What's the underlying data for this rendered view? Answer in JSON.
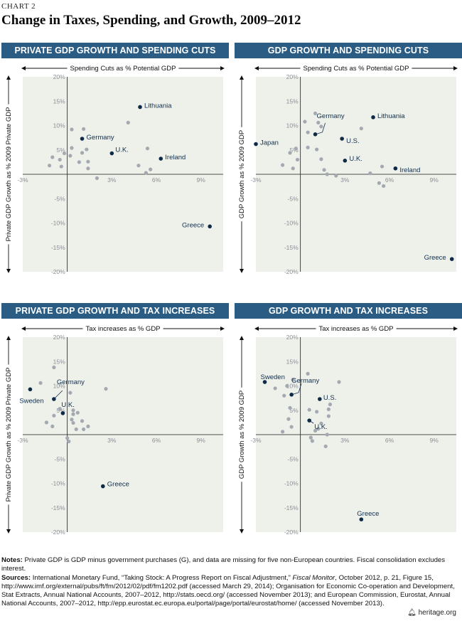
{
  "chart_label": "CHART 2",
  "title": "Change in Taxes, Spending, and Growth, 2009–2012",
  "chart_data": [
    {
      "type": "scatter",
      "title": "PRIVATE GDP GROWTH AND SPENDING CUTS",
      "xlabel": "Spending Cuts as % Potential GDP",
      "ylabel": "Private GDP Growth as % 2009 Private GDP",
      "xlim": [
        -3,
        10.5
      ],
      "ylim": [
        -20,
        20
      ],
      "xticks": [
        "-3%",
        "3%",
        "6%",
        "9%"
      ],
      "yticks": [
        "20%",
        "15%",
        "10%",
        "5%",
        "-5%",
        "-10%",
        "-15%",
        "-20%"
      ],
      "points": [
        {
          "x": 4.9,
          "y": 13.8,
          "label": "Lithuania"
        },
        {
          "x": 1.0,
          "y": 7.3,
          "label": "Germany"
        },
        {
          "x": 3.0,
          "y": 4.3,
          "label": "U.K."
        },
        {
          "x": 6.3,
          "y": 3.2,
          "label": "Ireland"
        },
        {
          "x": 9.6,
          "y": -10.7,
          "label": "Greece"
        },
        {
          "x": 0.3,
          "y": 9.2
        },
        {
          "x": 1.1,
          "y": 9.3
        },
        {
          "x": 4.1,
          "y": 10.6
        },
        {
          "x": 0.3,
          "y": 5.4
        },
        {
          "x": 1.3,
          "y": 5.1
        },
        {
          "x": 1.0,
          "y": 4.4
        },
        {
          "x": -0.2,
          "y": 4.3
        },
        {
          "x": 0.2,
          "y": 3.8
        },
        {
          "x": -1.0,
          "y": 3.5
        },
        {
          "x": -0.5,
          "y": 3.0
        },
        {
          "x": 0.8,
          "y": 2.5
        },
        {
          "x": 1.4,
          "y": 2.6
        },
        {
          "x": -1.2,
          "y": 1.8
        },
        {
          "x": -0.4,
          "y": 1.6
        },
        {
          "x": 1.4,
          "y": 1.2
        },
        {
          "x": 2.0,
          "y": -0.8
        },
        {
          "x": 5.4,
          "y": 5.3
        },
        {
          "x": 4.8,
          "y": 1.8
        },
        {
          "x": 5.6,
          "y": 1.0
        },
        {
          "x": 5.3,
          "y": 0.3
        }
      ]
    },
    {
      "type": "scatter",
      "title": "GDP GROWTH AND SPENDING CUTS",
      "xlabel": "Spending Cuts as % Potential GDP",
      "ylabel": "GDP Growth as % 2009 GDP",
      "xlim": [
        -3,
        10.5
      ],
      "ylim": [
        -20,
        20
      ],
      "xticks": [
        "-3%",
        "3%",
        "6%",
        "9%"
      ],
      "yticks": [
        "20%",
        "15%",
        "10%",
        "5%",
        "-5%",
        "-10%",
        "-15%",
        "-20%"
      ],
      "points": [
        {
          "x": -3.0,
          "y": 6.2,
          "label": "Japan"
        },
        {
          "x": 1.0,
          "y": 8.2,
          "label": "Germany"
        },
        {
          "x": 4.9,
          "y": 11.7,
          "label": "Lithuania"
        },
        {
          "x": 2.8,
          "y": 7.3,
          "label": "U.S."
        },
        {
          "x": 3.0,
          "y": 2.8,
          "label": "U.K."
        },
        {
          "x": 6.4,
          "y": 1.2,
          "label": "Ireland"
        },
        {
          "x": 10.2,
          "y": -17.4,
          "label": "Greece"
        },
        {
          "x": 1.0,
          "y": 12.5
        },
        {
          "x": 0.3,
          "y": 10.8
        },
        {
          "x": 1.2,
          "y": 10.6
        },
        {
          "x": 1.4,
          "y": 9.8
        },
        {
          "x": 4.1,
          "y": 9.4
        },
        {
          "x": 0.5,
          "y": 8.6
        },
        {
          "x": -0.3,
          "y": 5.3
        },
        {
          "x": 0.5,
          "y": 5.5
        },
        {
          "x": 1.1,
          "y": 5.1
        },
        {
          "x": -0.7,
          "y": 4.4
        },
        {
          "x": 1.4,
          "y": 3.1
        },
        {
          "x": -0.2,
          "y": 3.0
        },
        {
          "x": -1.2,
          "y": 1.9
        },
        {
          "x": -0.5,
          "y": 1.2
        },
        {
          "x": 1.6,
          "y": 0.9
        },
        {
          "x": 1.8,
          "y": 0.0
        },
        {
          "x": 2.4,
          "y": -0.3
        },
        {
          "x": 4.7,
          "y": 0.2
        },
        {
          "x": 5.5,
          "y": 1.6
        },
        {
          "x": 5.3,
          "y": -1.8
        },
        {
          "x": 5.6,
          "y": -2.4
        }
      ]
    },
    {
      "type": "scatter",
      "title": "PRIVATE GDP GROWTH AND TAX INCREASES",
      "xlabel": "Tax increases as % GDP",
      "ylabel": "Private GDP Growth as % 2009 Private GDP",
      "xlim": [
        -3,
        10.5
      ],
      "ylim": [
        -20,
        20
      ],
      "xticks": [
        "-3%",
        "3%",
        "6%",
        "9%"
      ],
      "yticks": [
        "20%",
        "15%",
        "10%",
        "5%",
        "-5%",
        "-10%",
        "-15%",
        "-20%"
      ],
      "points": [
        {
          "x": -2.5,
          "y": 9.3,
          "label": "Sweden"
        },
        {
          "x": -0.9,
          "y": 7.3,
          "label": "Germany"
        },
        {
          "x": -0.3,
          "y": 4.4,
          "label": "U.K."
        },
        {
          "x": 2.4,
          "y": -10.6,
          "label": "Greece"
        },
        {
          "x": -0.9,
          "y": 13.8
        },
        {
          "x": -1.8,
          "y": 10.6
        },
        {
          "x": 0.2,
          "y": 8.6
        },
        {
          "x": 2.6,
          "y": 9.4
        },
        {
          "x": -0.5,
          "y": 5.3
        },
        {
          "x": 0.4,
          "y": 5.0
        },
        {
          "x": 0.4,
          "y": 4.2
        },
        {
          "x": -0.9,
          "y": 3.9
        },
        {
          "x": -1.4,
          "y": 2.5
        },
        {
          "x": 0.3,
          "y": 3.1
        },
        {
          "x": 0.4,
          "y": 2.4
        },
        {
          "x": 1.0,
          "y": 2.8
        },
        {
          "x": -1.0,
          "y": 1.7
        },
        {
          "x": 1.4,
          "y": 1.7
        },
        {
          "x": 0.6,
          "y": 1.1
        },
        {
          "x": 1.1,
          "y": 1.1
        },
        {
          "x": 0.0,
          "y": -0.7
        },
        {
          "x": 0.1,
          "y": -1.4
        },
        {
          "x": 0.7,
          "y": 4.5
        }
      ]
    },
    {
      "type": "scatter",
      "title": "GDP GROWTH AND TAX INCREASES",
      "xlabel": "Tax increases as % GDP",
      "ylabel": "GDP Growth as % 2009 GDP",
      "xlim": [
        -3,
        10.5
      ],
      "ylim": [
        -20,
        20
      ],
      "xticks": [
        "-3%",
        "3%",
        "6%",
        "9%"
      ],
      "yticks": [
        "20%",
        "15%",
        "10%",
        "5%",
        "-5%",
        "-10%",
        "-15%",
        "-20%"
      ],
      "points": [
        {
          "x": -2.4,
          "y": 10.8,
          "label": "Sweden"
        },
        {
          "x": -0.6,
          "y": 8.2,
          "label": "Germany"
        },
        {
          "x": 1.3,
          "y": 7.3,
          "label": "U.S."
        },
        {
          "x": 0.6,
          "y": 2.9,
          "label": "U.K."
        },
        {
          "x": 4.1,
          "y": -17.4,
          "label": "Greece"
        },
        {
          "x": 0.5,
          "y": 12.5
        },
        {
          "x": -0.5,
          "y": 11.3
        },
        {
          "x": 2.6,
          "y": 10.8
        },
        {
          "x": -1.7,
          "y": 9.5
        },
        {
          "x": -0.9,
          "y": 10.0
        },
        {
          "x": -1.1,
          "y": 8.0
        },
        {
          "x": 2.0,
          "y": 6.2
        },
        {
          "x": 1.9,
          "y": 5.2
        },
        {
          "x": -0.7,
          "y": 5.5
        },
        {
          "x": 1.1,
          "y": 4.7
        },
        {
          "x": 0.6,
          "y": 5.1
        },
        {
          "x": 1.9,
          "y": 3.8
        },
        {
          "x": -0.8,
          "y": 3.2
        },
        {
          "x": 1.4,
          "y": 2.3
        },
        {
          "x": -0.6,
          "y": 1.6
        },
        {
          "x": 1.2,
          "y": 1.2
        },
        {
          "x": 1.0,
          "y": 0.8
        },
        {
          "x": -1.2,
          "y": 0.6
        },
        {
          "x": 1.8,
          "y": 0.0
        },
        {
          "x": 0.7,
          "y": -0.6
        },
        {
          "x": 1.7,
          "y": -2.4
        },
        {
          "x": 0.8,
          "y": -1.3
        }
      ]
    }
  ],
  "footer": {
    "notes_label": "Notes:",
    "notes_text": " Private GDP is GDP minus government purchases (G), and data are missing for five non-European countries. Fiscal consolidation excludes interest.",
    "sources_label": "Sources:",
    "sources_pre": " International Monetary Fund, “Taking Stock: A Progress Report on Fiscal Adjustment,” ",
    "sources_italic": "Fiscal Monitor",
    "sources_post": ", October 2012, p. 21, Figure 15, http://www.imf.org/external/pubs/ft/fm/2012/02/pdf/fm1202.pdf (accessed March 29, 2014); Organisation for Economic Co-operation and Development, Stat Extracts, Annual National Accounts, 2007–2012, http://stats.oecd.org/ (accessed November 2013); and European Commission, Eurostat, Annual National Accounts, 2007–2012, http://epp.eurostat.ec.europa.eu/portal/page/portal/eurostat/home/ (accessed November 2013).",
    "brand": "heritage.org",
    "brand_icon": "bell-icon"
  }
}
